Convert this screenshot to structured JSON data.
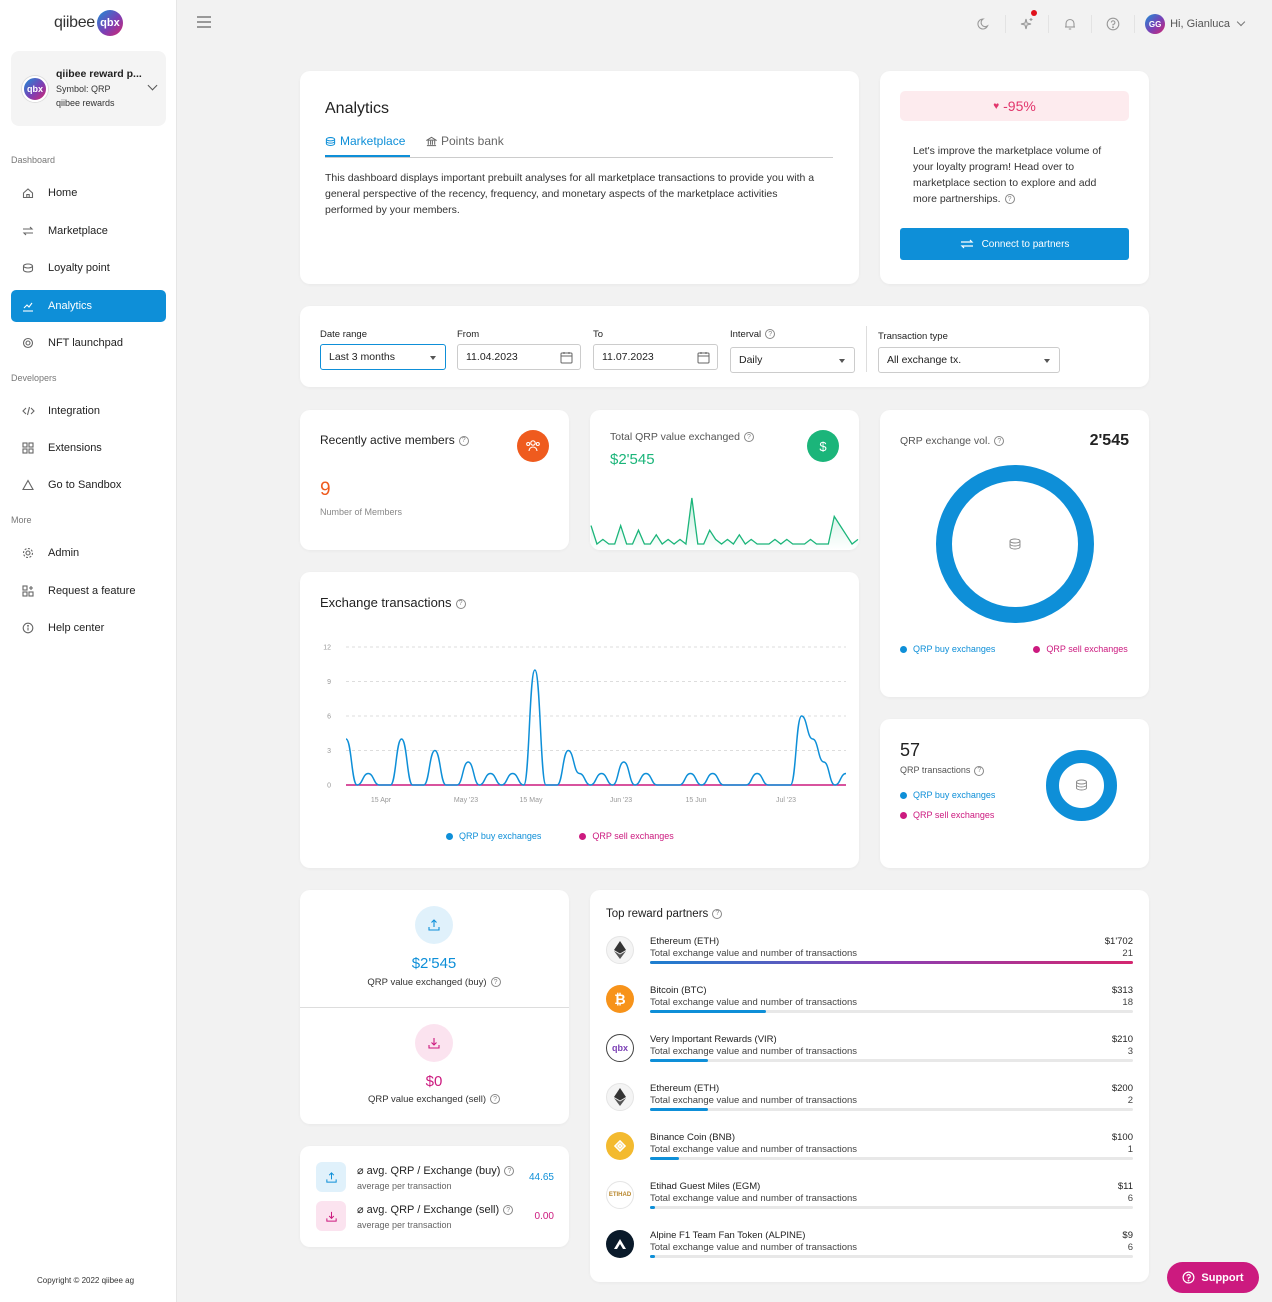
{
  "brand": {
    "logo_text": "qiibee",
    "logo_badge": "qbx"
  },
  "program": {
    "avatar": "qbx",
    "name": "qiibee reward p...",
    "symbol": "Symbol: QRP",
    "subtitle": "qiibee rewards"
  },
  "sidebar": {
    "sections": [
      "Dashboard",
      "Developers",
      "More"
    ],
    "items": [
      {
        "label": "Home",
        "icon": "home-icon"
      },
      {
        "label": "Marketplace",
        "icon": "swap-icon"
      },
      {
        "label": "Loyalty point",
        "icon": "coins-icon"
      },
      {
        "label": "Analytics",
        "icon": "analytics-icon",
        "active": true
      },
      {
        "label": "NFT launchpad",
        "icon": "nft-icon"
      },
      {
        "label": "Integration",
        "icon": "code-icon"
      },
      {
        "label": "Extensions",
        "icon": "extensions-icon"
      },
      {
        "label": "Go to Sandbox",
        "icon": "sandbox-icon"
      },
      {
        "label": "Admin",
        "icon": "gear-icon"
      },
      {
        "label": "Request a feature",
        "icon": "feature-icon"
      },
      {
        "label": "Help center",
        "icon": "info-icon"
      }
    ],
    "copyright": "Copyright © 2022 qiibee ag"
  },
  "topbar": {
    "user_initials": "GG",
    "greeting": "Hi, Gianluca"
  },
  "analytics": {
    "title": "Analytics",
    "tabs": [
      "Marketplace",
      "Points bank"
    ],
    "description": "This dashboard displays important prebuilt analyses for all marketplace transactions to provide you with a general perspective of the recency, frequency, and monetary aspects of the marketplace activities performed by your members."
  },
  "improve": {
    "percent": "-95%",
    "text": "Let's improve the marketplace volume of your loyalty program! Head over to marketplace section to explore and add more partnerships.",
    "button": "Connect to partners"
  },
  "filters": {
    "date_range_label": "Date range",
    "date_range_value": "Last 3 months",
    "from_label": "From",
    "from_value": "11.04.2023",
    "to_label": "To",
    "to_value": "11.07.2023",
    "interval_label": "Interval",
    "interval_value": "Daily",
    "tx_type_label": "Transaction type",
    "tx_type_value": "All exchange tx."
  },
  "active_members": {
    "title": "Recently active members",
    "value": "9",
    "label": "Number of Members"
  },
  "total_value": {
    "title": "Total QRP value exchanged",
    "value": "$2'545"
  },
  "exchange_vol": {
    "title": "QRP exchange vol.",
    "value": "2'545",
    "legend_buy": "QRP buy exchanges",
    "legend_sell": "QRP sell exchanges",
    "buy_share": 1.0,
    "sell_share": 0.0
  },
  "qrp_tx": {
    "value": "57",
    "label": "QRP transactions",
    "legend_buy": "QRP buy exchanges",
    "legend_sell": "QRP sell exchanges"
  },
  "exchange_tx": {
    "title": "Exchange transactions",
    "legend_buy": "QRP buy exchanges",
    "legend_sell": "QRP sell exchanges"
  },
  "chart_data": {
    "type": "line",
    "title": "Exchange transactions",
    "x_tick_labels": [
      "15 Apr",
      "May '23",
      "15 May",
      "Jun '23",
      "15 Jun",
      "Jul '23"
    ],
    "y_ticks": [
      0,
      3,
      6,
      9,
      12
    ],
    "ylim": [
      0,
      12
    ],
    "x": [
      "2023-04-11",
      "2023-04-13",
      "2023-04-15",
      "2023-04-17",
      "2023-04-19",
      "2023-04-21",
      "2023-04-23",
      "2023-04-25",
      "2023-04-27",
      "2023-04-29",
      "2023-05-01",
      "2023-05-03",
      "2023-05-05",
      "2023-05-07",
      "2023-05-09",
      "2023-05-11",
      "2023-05-13",
      "2023-05-15",
      "2023-05-17",
      "2023-05-19",
      "2023-05-21",
      "2023-05-23",
      "2023-05-25",
      "2023-05-27",
      "2023-05-29",
      "2023-05-31",
      "2023-06-02",
      "2023-06-04",
      "2023-06-06",
      "2023-06-08",
      "2023-06-10",
      "2023-06-12",
      "2023-06-14",
      "2023-06-16",
      "2023-06-18",
      "2023-06-20",
      "2023-06-22",
      "2023-06-24",
      "2023-06-26",
      "2023-06-28",
      "2023-06-30",
      "2023-07-02",
      "2023-07-04",
      "2023-07-06",
      "2023-07-08",
      "2023-07-10"
    ],
    "series": [
      {
        "name": "QRP buy exchanges",
        "color": "#0e8fd8",
        "values": [
          4,
          0,
          1,
          0,
          0,
          4,
          0,
          0,
          3,
          0,
          0,
          2,
          0,
          1,
          0,
          1,
          0,
          10,
          0,
          0,
          3,
          1,
          0,
          1,
          0,
          2,
          0,
          1,
          0,
          0,
          0,
          1,
          0,
          1,
          0,
          0,
          0,
          1,
          0,
          0,
          0,
          6,
          4,
          2,
          0,
          1
        ]
      },
      {
        "name": "QRP sell exchanges",
        "color": "#cc1a7f",
        "values": [
          0,
          0,
          0,
          0,
          0,
          0,
          0,
          0,
          0,
          0,
          0,
          0,
          0,
          0,
          0,
          0,
          0,
          0,
          0,
          0,
          0,
          0,
          0,
          0,
          0,
          0,
          0,
          0,
          0,
          0,
          0,
          0,
          0,
          0,
          0,
          0,
          0,
          0,
          0,
          0,
          0,
          0,
          0,
          0,
          0,
          0
        ]
      }
    ]
  },
  "buy_value": {
    "value": "$2'545",
    "label": "QRP value exchanged (buy)"
  },
  "sell_value": {
    "value": "$0",
    "label": "QRP value exchanged (sell)"
  },
  "avg": {
    "buy_title": "⌀ avg. QRP / Exchange (buy)",
    "buy_sub": "average per transaction",
    "buy_value": "44.65",
    "sell_title": "⌀ avg. QRP / Exchange (sell)",
    "sell_sub": "average per transaction",
    "sell_value": "0.00"
  },
  "partners": {
    "title": "Top reward partners",
    "items": [
      {
        "name": "Ethereum (ETH)",
        "desc": "Total exchange value and number of transactions",
        "amount": "$1'702",
        "count": "21",
        "share": 1.0,
        "logo": "ethereum-icon"
      },
      {
        "name": "Bitcoin (BTC)",
        "desc": "Total exchange value and number of transactions",
        "amount": "$313",
        "count": "18",
        "share": 0.24,
        "logo": "bitcoin-icon"
      },
      {
        "name": "Very Important Rewards (VIR)",
        "desc": "Total exchange value and number of transactions",
        "amount": "$210",
        "count": "3",
        "share": 0.12,
        "logo": "qbx-icon"
      },
      {
        "name": "Ethereum (ETH)",
        "desc": "Total exchange value and number of transactions",
        "amount": "$200",
        "count": "2",
        "share": 0.12,
        "logo": "ethereum-icon"
      },
      {
        "name": "Binance Coin (BNB)",
        "desc": "Total exchange value and number of transactions",
        "amount": "$100",
        "count": "1",
        "share": 0.06,
        "logo": "binance-icon"
      },
      {
        "name": "Etihad Guest Miles (EGM)",
        "desc": "Total exchange value and number of transactions",
        "amount": "$11",
        "count": "6",
        "share": 0.01,
        "logo": "etihad-icon"
      },
      {
        "name": "Alpine F1 Team Fan Token (ALPINE)",
        "desc": "Total exchange value and number of transactions",
        "amount": "$9",
        "count": "6",
        "share": 0.01,
        "logo": "alpine-icon"
      }
    ]
  },
  "support": {
    "label": "Support"
  }
}
